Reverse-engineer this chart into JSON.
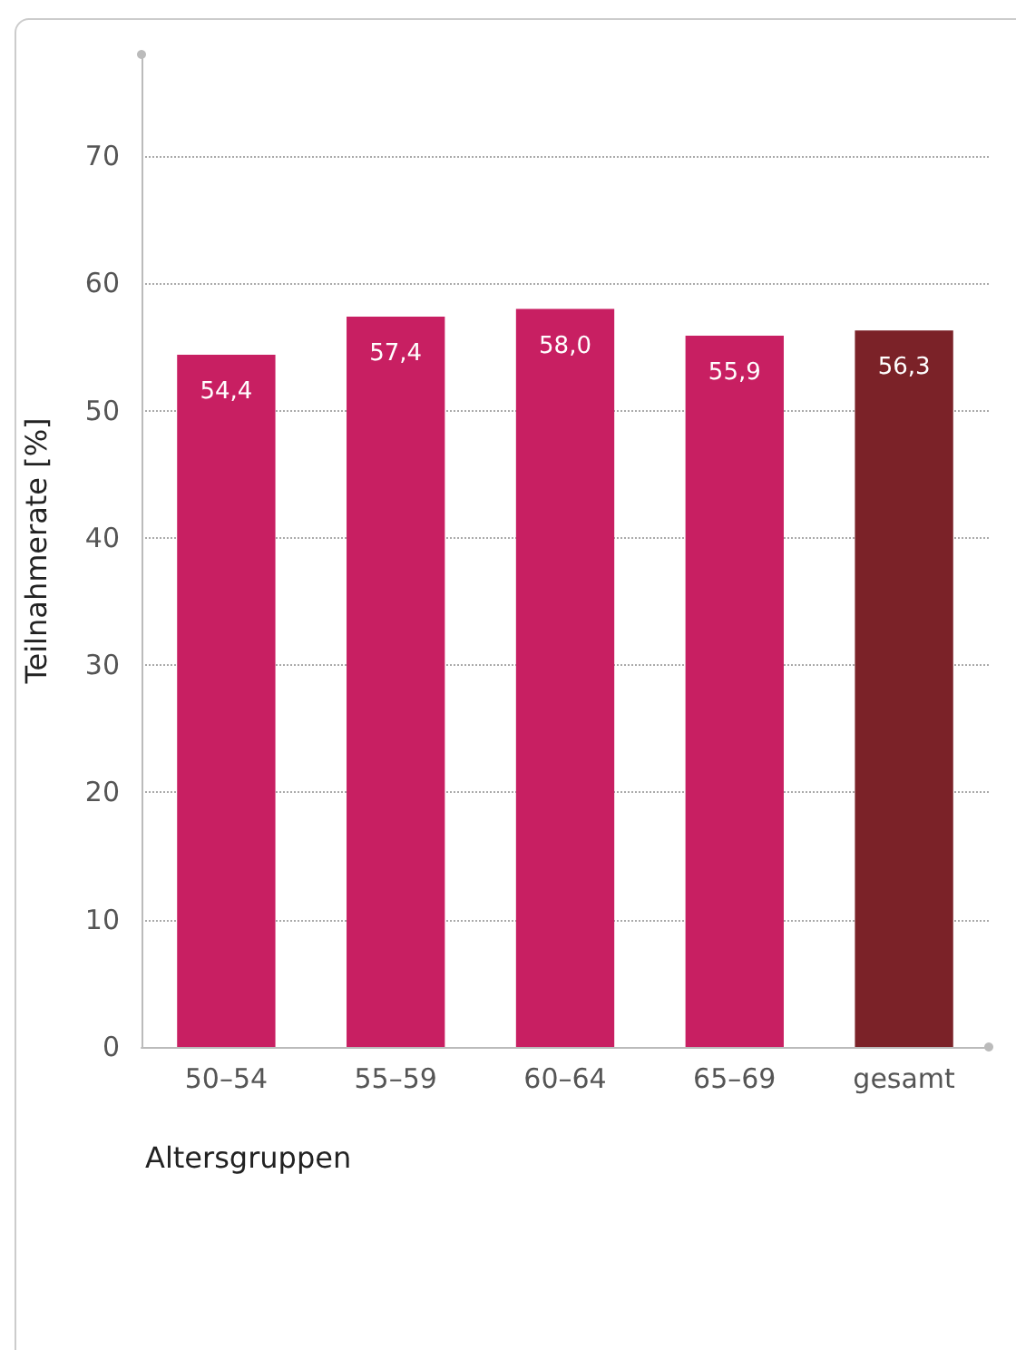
{
  "chart_data": {
    "type": "bar",
    "xlabel": "Altersgruppen",
    "ylabel": "Teilnahmerate [%]",
    "categories": [
      "50–54",
      "55–59",
      "60–64",
      "65–69",
      "gesamt"
    ],
    "values": [
      54.4,
      57.4,
      58.0,
      55.9,
      56.3
    ],
    "colors": [
      "#c81f62",
      "#c81f62",
      "#c81f62",
      "#c81f62",
      "#7b2228"
    ],
    "value_labels": [
      "54,4",
      "57,4",
      "58,0",
      "55,9",
      "56,3"
    ],
    "ylim": [
      0,
      78
    ],
    "yticks": [
      0,
      10,
      20,
      30,
      40,
      50,
      60,
      70
    ],
    "grid": "y"
  }
}
